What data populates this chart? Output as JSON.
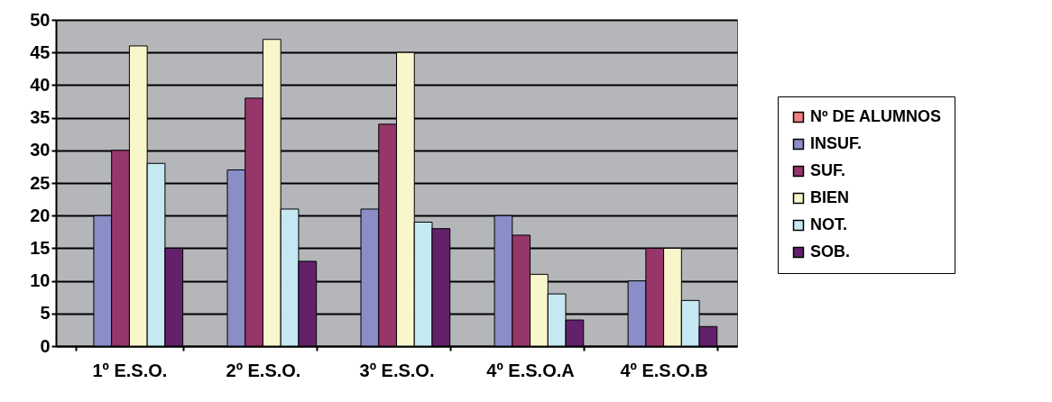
{
  "chart_data": {
    "type": "bar",
    "categories": [
      "1º E.S.O.",
      "2º E.S.O.",
      "3º E.S.O.",
      "4º E.S.O.A",
      "4º E.S.O.B"
    ],
    "series": [
      {
        "name": "Nº DE ALUMNOS",
        "color": "#f08080",
        "values": [
          null,
          null,
          null,
          null,
          null
        ]
      },
      {
        "name": "INSUF.",
        "color": "#8b8dc7",
        "values": [
          20,
          27,
          21,
          20,
          10
        ]
      },
      {
        "name": "SUF.",
        "color": "#96366b",
        "values": [
          30,
          38,
          34,
          17,
          15
        ]
      },
      {
        "name": "BIEN",
        "color": "#faf6cc",
        "values": [
          46,
          47,
          45,
          11,
          15
        ]
      },
      {
        "name": "NOT.",
        "color": "#c5e8f2",
        "values": [
          28,
          21,
          19,
          8,
          7
        ]
      },
      {
        "name": "SOB.",
        "color": "#63206b",
        "values": [
          15,
          13,
          18,
          4,
          3
        ]
      }
    ],
    "ylim": [
      0,
      50
    ],
    "yticks": [
      0,
      5,
      10,
      15,
      20,
      25,
      30,
      35,
      40,
      45,
      50
    ],
    "grid": "y",
    "legend": "right"
  }
}
